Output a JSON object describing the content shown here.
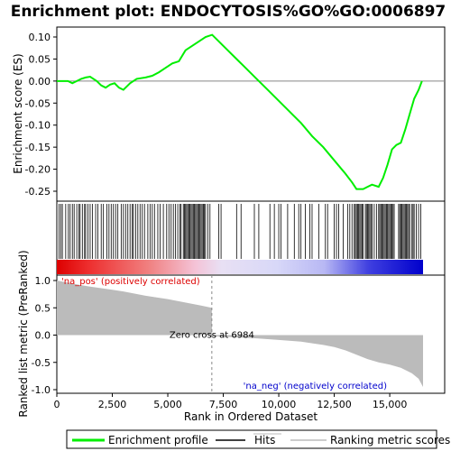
{
  "chart_data": {
    "type": "line",
    "title": "Enrichment plot: ENDOCYTOSIS%GO%GO:0006897",
    "xlabel": "Rank in Ordered Dataset",
    "ylabel_top": "Enrichment score (ES)",
    "ylabel_bottom": "Ranked list metric (PreRanked)",
    "xlim": [
      0,
      16500
    ],
    "es_ylim": [
      -0.27,
      0.12
    ],
    "metric_ylim": [
      -1.05,
      1.1
    ],
    "x_ticks": [
      0,
      2500,
      5000,
      7500,
      10000,
      12500,
      15000
    ],
    "x_tick_labels": [
      "0",
      "2,500",
      "5,000",
      "7,500",
      "10,000",
      "12,500",
      "15,000"
    ],
    "es_ticks": [
      0.1,
      0.05,
      0.0,
      -0.05,
      -0.1,
      -0.15,
      -0.2,
      -0.25
    ],
    "es_tick_labels": [
      "0.10",
      "0.05",
      "0.00",
      "-0.05",
      "-0.10",
      "-0.15",
      "-0.20",
      "-0.25"
    ],
    "metric_ticks": [
      1.0,
      0.5,
      0.0,
      -0.5,
      -1.0
    ],
    "metric_tick_labels": [
      "1.0",
      "0.5",
      "0.0",
      "-0.5",
      "-1.0"
    ],
    "series": [
      {
        "name": "Enrichment profile",
        "color": "#00ee00",
        "x": [
          0,
          300,
          500,
          700,
          900,
          1100,
          1300,
          1500,
          1800,
          2000,
          2200,
          2400,
          2600,
          2800,
          3000,
          3300,
          3600,
          4000,
          4300,
          4600,
          4900,
          5200,
          5500,
          5800,
          6100,
          6400,
          6700,
          7000,
          7500,
          8000,
          8500,
          9000,
          9500,
          10000,
          10500,
          11000,
          11500,
          12000,
          12500,
          13000,
          13300,
          13500,
          13800,
          14000,
          14200,
          14500,
          14700,
          14900,
          15100,
          15300,
          15500,
          15700,
          15900,
          16100,
          16300,
          16450
        ],
        "y": [
          0.0,
          0.0,
          0.0,
          -0.005,
          0.0,
          0.005,
          0.008,
          0.01,
          0.0,
          -0.01,
          -0.015,
          -0.008,
          -0.005,
          -0.015,
          -0.02,
          -0.005,
          0.005,
          0.008,
          0.012,
          0.02,
          0.03,
          0.04,
          0.045,
          0.07,
          0.08,
          0.09,
          0.1,
          0.105,
          0.08,
          0.055,
          0.03,
          0.005,
          -0.02,
          -0.045,
          -0.07,
          -0.095,
          -0.125,
          -0.15,
          -0.18,
          -0.21,
          -0.23,
          -0.245,
          -0.245,
          -0.24,
          -0.235,
          -0.24,
          -0.22,
          -0.19,
          -0.155,
          -0.145,
          -0.14,
          -0.11,
          -0.075,
          -0.04,
          -0.02,
          0.0
        ]
      }
    ],
    "metric_profile": {
      "x": [
        0,
        500,
        1000,
        1500,
        2000,
        2500,
        3000,
        3500,
        4000,
        4500,
        5000,
        5500,
        6000,
        6500,
        6984,
        7000,
        8000,
        9000,
        10000,
        11000,
        12000,
        12500,
        13000,
        13500,
        14000,
        14500,
        15000,
        15500,
        16000,
        16300,
        16500
      ],
      "y": [
        1.0,
        0.96,
        0.92,
        0.89,
        0.86,
        0.83,
        0.8,
        0.76,
        0.72,
        0.69,
        0.66,
        0.62,
        0.58,
        0.54,
        0.5,
        -0.02,
        -0.04,
        -0.06,
        -0.09,
        -0.12,
        -0.18,
        -0.22,
        -0.28,
        -0.36,
        -0.44,
        -0.5,
        -0.54,
        -0.6,
        -0.7,
        -0.8,
        -0.95
      ],
      "fill_color": "#bbbbbb"
    },
    "zero_cross": 6984,
    "annotations": {
      "zero_cross_label": "Zero cross at 6984",
      "pos_label": "'na_pos' (positively correlated)",
      "neg_label": "'na_neg' (negatively correlated)"
    },
    "hits": [
      100,
      180,
      250,
      400,
      520,
      600,
      700,
      780,
      900,
      1000,
      1050,
      1150,
      1250,
      1300,
      1400,
      1500,
      1600,
      1750,
      1850,
      2000,
      2100,
      2250,
      2350,
      2450,
      2550,
      2650,
      2750,
      2900,
      3000,
      3100,
      3200,
      3300,
      3400,
      3450,
      3550,
      3650,
      3750,
      3850,
      3950,
      4100,
      4200,
      4300,
      4400,
      4550,
      4650,
      4800,
      4950,
      5050,
      5150,
      5250,
      5350,
      5450,
      5550,
      5600,
      5700,
      5750,
      5800,
      5850,
      5900,
      5950,
      6000,
      6050,
      6100,
      6150,
      6200,
      6250,
      6300,
      6350,
      6400,
      6450,
      6500,
      6550,
      6600,
      6650,
      6700,
      6800,
      6900,
      7300,
      7400,
      8100,
      8300,
      8900,
      9100,
      9600,
      9800,
      10000,
      10100,
      10400,
      10700,
      10900,
      11000,
      11200,
      11400,
      11500,
      11800,
      12100,
      12200,
      12500,
      12600,
      12700,
      12900,
      13100,
      13200,
      13300,
      13400,
      13450,
      13500,
      13550,
      13600,
      13650,
      13700,
      13750,
      13800,
      13900,
      13950,
      14000,
      14050,
      14100,
      14150,
      14200,
      14300,
      14400,
      14500,
      14550,
      14600,
      14650,
      14700,
      14750,
      14800,
      14850,
      14900,
      14950,
      15000,
      15050,
      15100,
      15150,
      15200,
      15400,
      15450,
      15500,
      15550,
      15600,
      15650,
      15700,
      15750,
      15800,
      15850,
      15900,
      16000,
      16050,
      16100,
      16200,
      16300,
      16400
    ],
    "legend": {
      "items": [
        {
          "label": "Enrichment profile",
          "color": "#00ee00"
        },
        {
          "label": "Hits",
          "color": "#000000"
        },
        {
          "label": "Ranking metric scores",
          "color": "#bbbbbb"
        }
      ]
    },
    "colors": {
      "pos_bar": "#dd0000",
      "neg_bar": "#0000dd",
      "pos_label": "#dd0000",
      "neg_label": "#0000cc",
      "zero_line": "#888888"
    },
    "grid": false
  }
}
